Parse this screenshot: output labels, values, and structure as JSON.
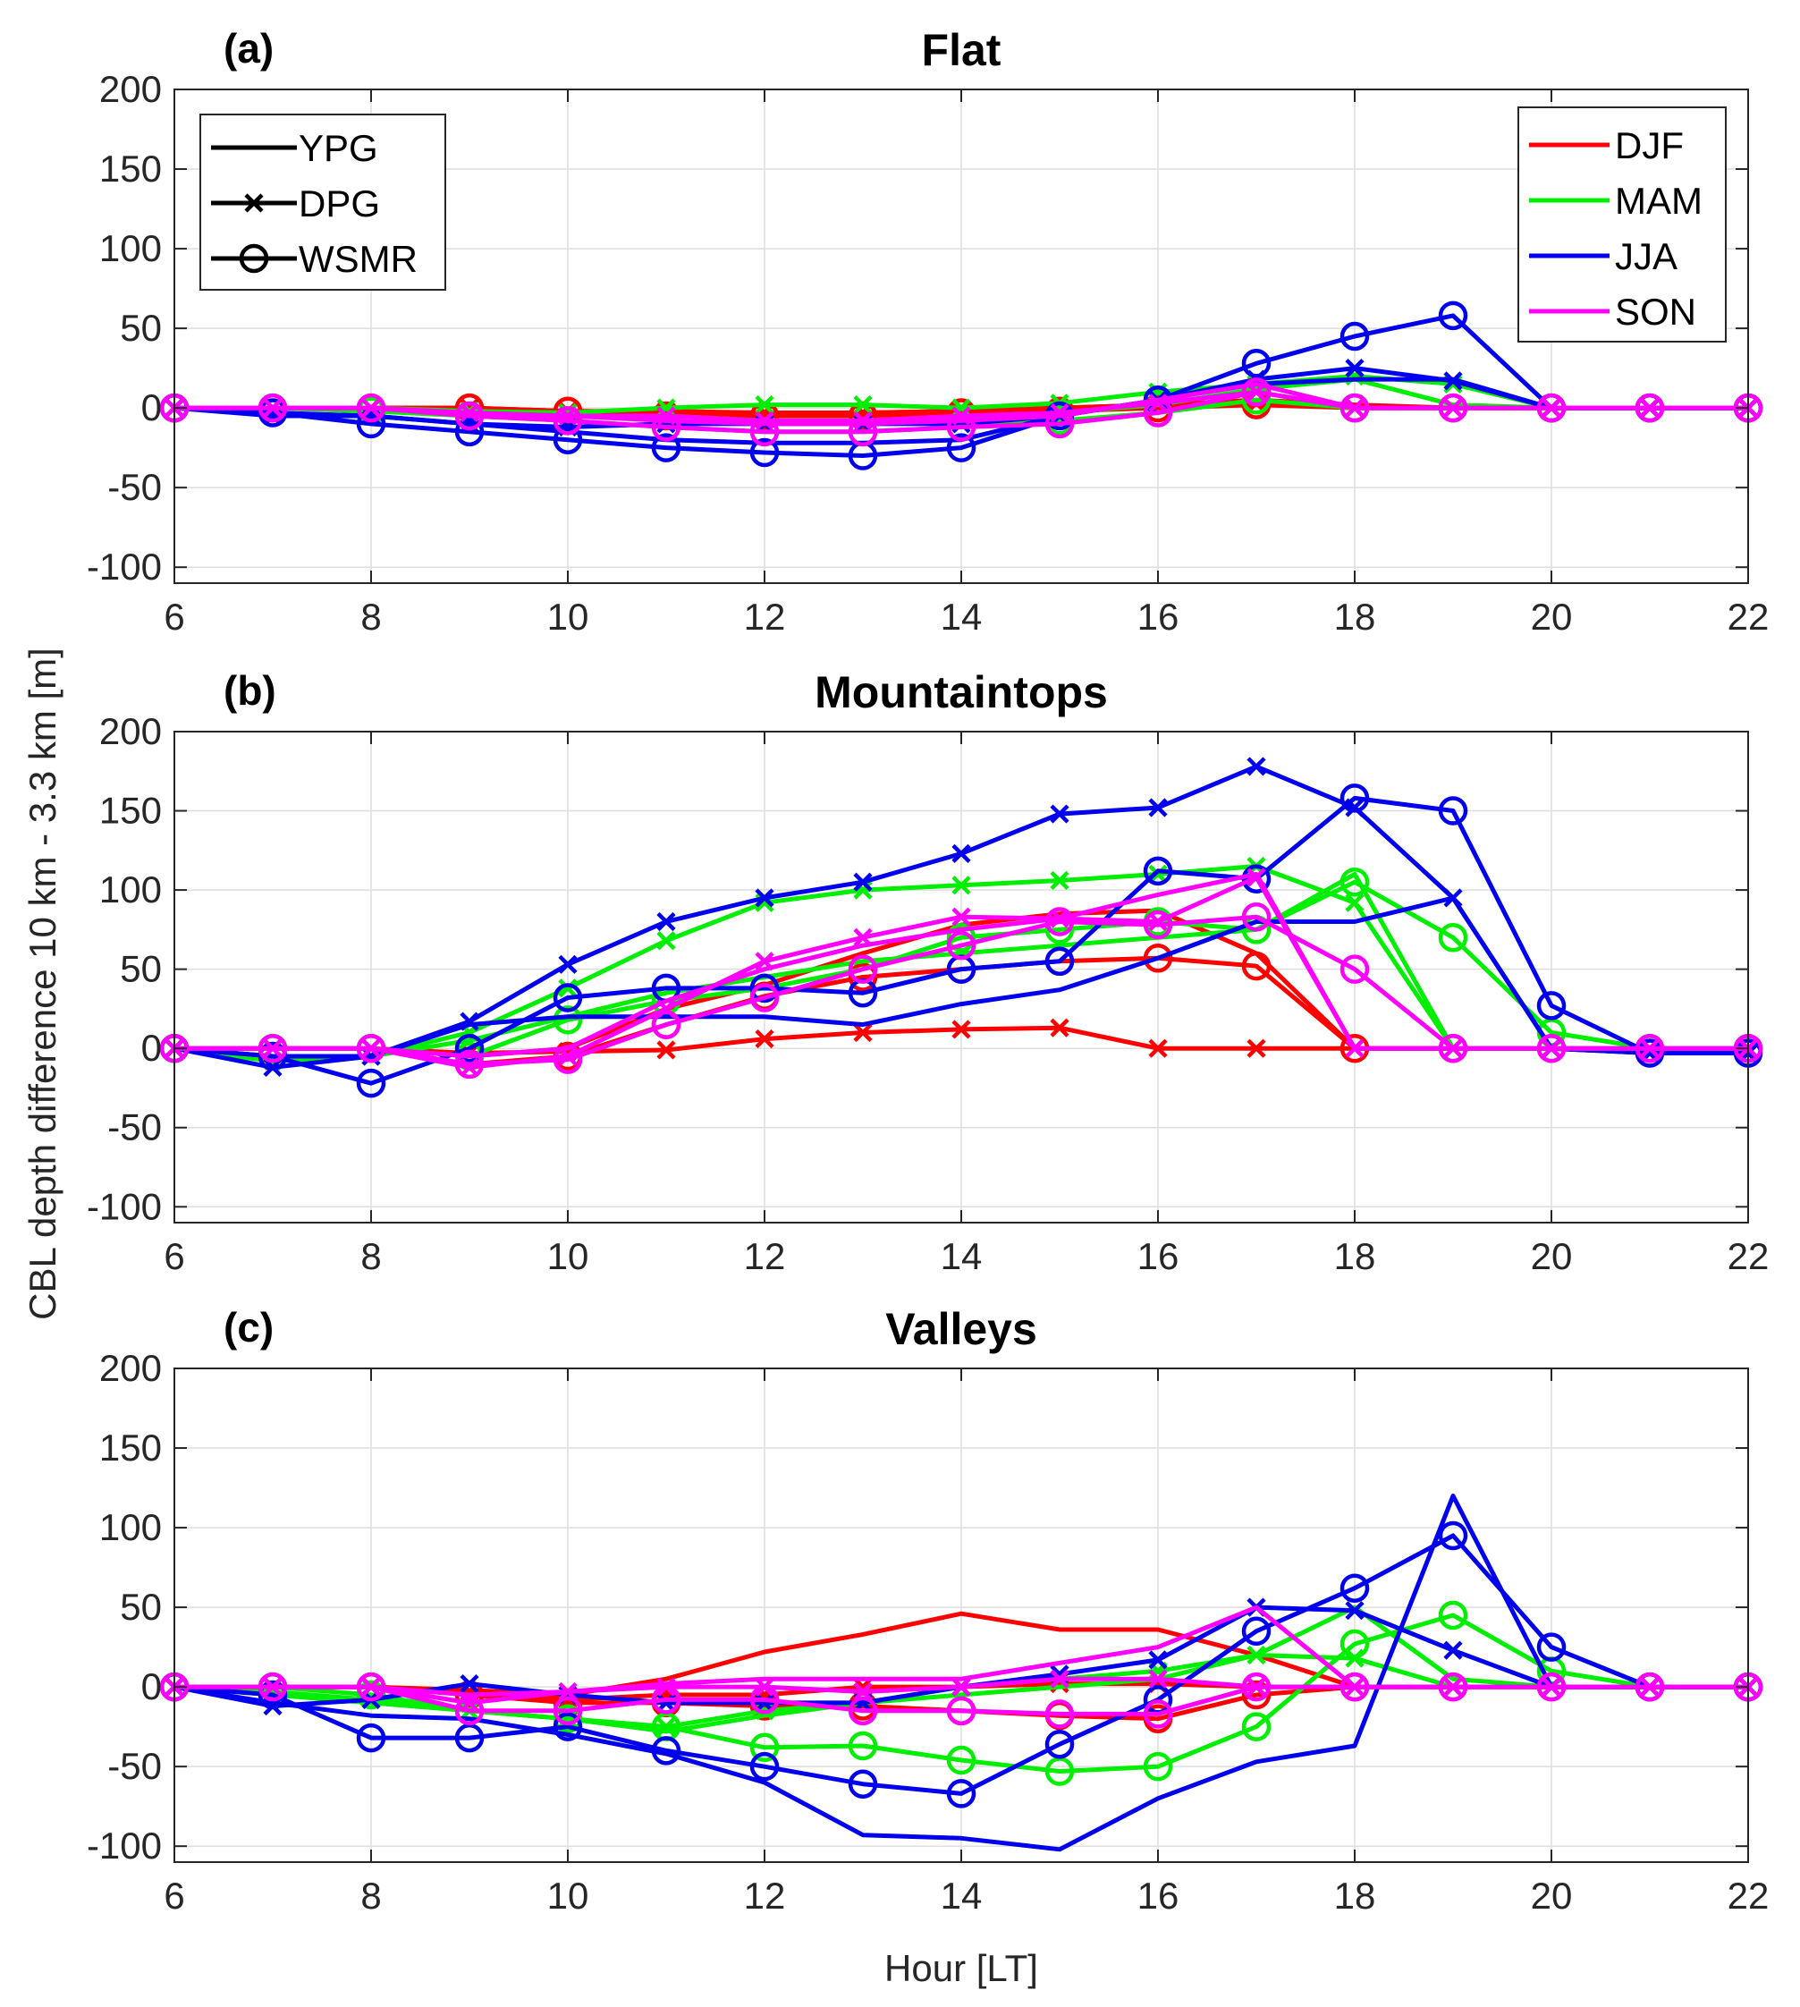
{
  "figure": {
    "ylabel": "CBL depth difference 10 km - 3.3 km [m]",
    "xlabel": "Hour [LT]"
  },
  "colors": {
    "DJF": "#ff0000",
    "MAM": "#00ee00",
    "JJA": "#0000ee",
    "SON": "#ff00ff",
    "axis": "#262626",
    "grid": "#dedede"
  },
  "legend_sites": [
    {
      "label": "YPG",
      "marker": "none"
    },
    {
      "label": "DPG",
      "marker": "x"
    },
    {
      "label": "WSMR",
      "marker": "o"
    }
  ],
  "legend_seasons": [
    {
      "label": "DJF",
      "color": "#ff0000"
    },
    {
      "label": "MAM",
      "color": "#00ee00"
    },
    {
      "label": "JJA",
      "color": "#0000ee"
    },
    {
      "label": "SON",
      "color": "#ff00ff"
    }
  ],
  "chart_data": [
    {
      "type": "line",
      "panel_label": "(a)",
      "title": "Flat",
      "xlim": [
        6,
        22
      ],
      "ylim": [
        -110,
        200
      ],
      "xticks": [
        6,
        8,
        10,
        12,
        14,
        16,
        18,
        20,
        22
      ],
      "yticks": [
        -100,
        -50,
        0,
        50,
        100,
        150,
        200
      ],
      "x": [
        6,
        7,
        8,
        9,
        10,
        11,
        12,
        13,
        14,
        15,
        16,
        17,
        18,
        19,
        20,
        21,
        22
      ],
      "series": [
        {
          "name": "DJF YPG",
          "season": "DJF",
          "site": "YPG",
          "values": [
            0,
            0,
            0,
            0,
            -2,
            -3,
            -3,
            -3,
            -2,
            0,
            2,
            5,
            2,
            0,
            0,
            0,
            0
          ]
        },
        {
          "name": "DJF DPG",
          "season": "DJF",
          "site": "DPG",
          "values": [
            0,
            0,
            0,
            0,
            -2,
            -2,
            -3,
            -3,
            -2,
            0,
            2,
            3,
            0,
            0,
            0,
            0,
            0
          ]
        },
        {
          "name": "DJF WSMR",
          "season": "DJF",
          "site": "WSMR",
          "values": [
            0,
            0,
            0,
            0,
            -2,
            -5,
            -5,
            -5,
            -3,
            -2,
            0,
            2,
            0,
            0,
            0,
            0,
            0
          ]
        },
        {
          "name": "MAM YPG",
          "season": "MAM",
          "site": "YPG",
          "values": [
            0,
            0,
            -2,
            -3,
            -5,
            -5,
            -8,
            -8,
            -6,
            -3,
            2,
            12,
            18,
            2,
            0,
            0,
            0
          ]
        },
        {
          "name": "MAM DPG",
          "season": "MAM",
          "site": "DPG",
          "values": [
            0,
            0,
            0,
            -2,
            -3,
            0,
            2,
            2,
            0,
            3,
            10,
            15,
            20,
            15,
            0,
            0,
            0
          ]
        },
        {
          "name": "MAM WSMR",
          "season": "MAM",
          "site": "WSMR",
          "values": [
            0,
            0,
            -2,
            -5,
            -8,
            -12,
            -15,
            -15,
            -12,
            -8,
            -3,
            5,
            0,
            0,
            0,
            0,
            0
          ]
        },
        {
          "name": "JJA YPG",
          "season": "JJA",
          "site": "YPG",
          "values": [
            0,
            -3,
            -5,
            -10,
            -15,
            -20,
            -22,
            -22,
            -20,
            -5,
            5,
            15,
            18,
            18,
            0,
            0,
            0
          ]
        },
        {
          "name": "JJA DPG",
          "season": "JJA",
          "site": "DPG",
          "values": [
            0,
            -5,
            -5,
            -10,
            -12,
            -10,
            -10,
            -10,
            -10,
            -5,
            5,
            18,
            25,
            17,
            0,
            0,
            0
          ]
        },
        {
          "name": "JJA WSMR",
          "season": "JJA",
          "site": "WSMR",
          "values": [
            0,
            -3,
            -10,
            -15,
            -20,
            -25,
            -28,
            -30,
            -25,
            -5,
            5,
            28,
            45,
            58,
            0,
            0,
            0
          ]
        },
        {
          "name": "SON YPG",
          "season": "SON",
          "site": "YPG",
          "values": [
            0,
            0,
            0,
            -3,
            -5,
            -8,
            -10,
            -10,
            -8,
            -5,
            5,
            15,
            0,
            0,
            0,
            0,
            0
          ]
        },
        {
          "name": "SON DPG",
          "season": "SON",
          "site": "DPG",
          "values": [
            0,
            0,
            0,
            -3,
            -5,
            -5,
            -8,
            -8,
            -5,
            -3,
            3,
            10,
            0,
            0,
            0,
            0,
            0
          ]
        },
        {
          "name": "SON WSMR",
          "season": "SON",
          "site": "WSMR",
          "values": [
            0,
            0,
            0,
            -5,
            -8,
            -12,
            -15,
            -15,
            -12,
            -10,
            -3,
            10,
            0,
            0,
            0,
            0,
            0
          ]
        }
      ]
    },
    {
      "type": "line",
      "panel_label": "(b)",
      "title": "Mountaintops",
      "xlim": [
        6,
        22
      ],
      "ylim": [
        -110,
        200
      ],
      "xticks": [
        6,
        8,
        10,
        12,
        14,
        16,
        18,
        20,
        22
      ],
      "yticks": [
        -100,
        -50,
        0,
        50,
        100,
        150,
        200
      ],
      "x": [
        6,
        7,
        8,
        9,
        10,
        11,
        12,
        13,
        14,
        15,
        16,
        17,
        18,
        19,
        20,
        21,
        22
      ],
      "series": [
        {
          "name": "DJF YPG",
          "season": "DJF",
          "site": "YPG",
          "values": [
            0,
            0,
            0,
            -5,
            0,
            25,
            40,
            60,
            78,
            85,
            87,
            60,
            0,
            0,
            0,
            0,
            0
          ]
        },
        {
          "name": "DJF DPG",
          "season": "DJF",
          "site": "DPG",
          "values": [
            0,
            0,
            0,
            -3,
            -2,
            -1,
            6,
            10,
            12,
            13,
            0,
            0,
            0,
            0,
            0,
            0,
            0
          ]
        },
        {
          "name": "DJF WSMR",
          "season": "DJF",
          "site": "WSMR",
          "values": [
            0,
            0,
            0,
            -10,
            -5,
            15,
            33,
            45,
            50,
            55,
            57,
            52,
            0,
            0,
            0,
            0,
            0
          ]
        },
        {
          "name": "MAM YPG",
          "season": "MAM",
          "site": "YPG",
          "values": [
            0,
            -5,
            -5,
            5,
            20,
            35,
            45,
            55,
            60,
            65,
            70,
            75,
            110,
            0,
            0,
            0,
            0
          ]
        },
        {
          "name": "MAM DPG",
          "season": "MAM",
          "site": "DPG",
          "values": [
            0,
            -8,
            -5,
            10,
            38,
            68,
            92,
            100,
            103,
            106,
            110,
            115,
            92,
            0,
            0,
            0,
            0
          ]
        },
        {
          "name": "MAM WSMR",
          "season": "MAM",
          "site": "WSMR",
          "values": [
            0,
            0,
            0,
            -5,
            18,
            30,
            38,
            50,
            70,
            75,
            80,
            75,
            105,
            70,
            10,
            0,
            0
          ]
        },
        {
          "name": "JJA YPG",
          "season": "JJA",
          "site": "YPG",
          "values": [
            0,
            -5,
            -5,
            15,
            20,
            20,
            20,
            15,
            28,
            37,
            57,
            80,
            80,
            95,
            0,
            -3,
            -3
          ]
        },
        {
          "name": "JJA DPG",
          "season": "JJA",
          "site": "DPG",
          "values": [
            0,
            -12,
            -5,
            17,
            53,
            80,
            95,
            105,
            123,
            148,
            152,
            178,
            152,
            95,
            0,
            -3,
            -3
          ]
        },
        {
          "name": "JJA WSMR",
          "season": "JJA",
          "site": "WSMR",
          "values": [
            0,
            -5,
            -22,
            0,
            32,
            38,
            38,
            35,
            50,
            55,
            112,
            107,
            158,
            150,
            27,
            -3,
            -3
          ]
        },
        {
          "name": "SON YPG",
          "season": "SON",
          "site": "YPG",
          "values": [
            0,
            0,
            0,
            -5,
            0,
            30,
            50,
            65,
            75,
            82,
            97,
            110,
            0,
            0,
            0,
            0,
            0
          ]
        },
        {
          "name": "SON DPG",
          "season": "SON",
          "site": "DPG",
          "values": [
            0,
            0,
            0,
            -12,
            -5,
            25,
            55,
            70,
            83,
            82,
            80,
            108,
            0,
            0,
            0,
            0,
            0
          ]
        },
        {
          "name": "SON WSMR",
          "season": "SON",
          "site": "WSMR",
          "values": [
            0,
            0,
            0,
            -10,
            -7,
            15,
            32,
            50,
            65,
            80,
            78,
            83,
            50,
            0,
            0,
            0,
            0
          ]
        }
      ]
    },
    {
      "type": "line",
      "panel_label": "(c)",
      "title": "Valleys",
      "xlim": [
        6,
        22
      ],
      "ylim": [
        -110,
        200
      ],
      "xticks": [
        6,
        8,
        10,
        12,
        14,
        16,
        18,
        20,
        22
      ],
      "yticks": [
        -100,
        -50,
        0,
        50,
        100,
        150,
        200
      ],
      "x": [
        6,
        7,
        8,
        9,
        10,
        11,
        12,
        13,
        14,
        15,
        16,
        17,
        18,
        19,
        20,
        21,
        22
      ],
      "series": [
        {
          "name": "DJF YPG",
          "season": "DJF",
          "site": "YPG",
          "values": [
            0,
            0,
            0,
            -2,
            -5,
            5,
            22,
            33,
            46,
            36,
            36,
            20,
            0,
            0,
            0,
            0,
            0
          ]
        },
        {
          "name": "DJF DPG",
          "season": "DJF",
          "site": "DPG",
          "values": [
            0,
            0,
            0,
            -3,
            -8,
            -5,
            -5,
            0,
            0,
            2,
            2,
            0,
            0,
            0,
            0,
            0,
            0
          ]
        },
        {
          "name": "DJF WSMR",
          "season": "DJF",
          "site": "WSMR",
          "values": [
            0,
            0,
            0,
            -5,
            -10,
            -10,
            -12,
            -12,
            -15,
            -18,
            -20,
            -5,
            0,
            0,
            0,
            0,
            0
          ]
        },
        {
          "name": "MAM YPG",
          "season": "MAM",
          "site": "YPG",
          "values": [
            0,
            -5,
            -10,
            -15,
            -20,
            -28,
            -18,
            -10,
            -5,
            0,
            5,
            20,
            50,
            5,
            0,
            0,
            0
          ]
        },
        {
          "name": "MAM DPG",
          "season": "MAM",
          "site": "DPG",
          "values": [
            0,
            -3,
            -8,
            -15,
            -20,
            -25,
            -15,
            -10,
            0,
            5,
            10,
            20,
            18,
            0,
            0,
            0,
            0
          ]
        },
        {
          "name": "MAM WSMR",
          "season": "MAM",
          "site": "WSMR",
          "values": [
            0,
            0,
            -5,
            -15,
            -20,
            -25,
            -38,
            -37,
            -46,
            -53,
            -50,
            -25,
            27,
            45,
            10,
            0,
            0
          ]
        },
        {
          "name": "JJA YPG",
          "season": "JJA",
          "site": "YPG",
          "values": [
            0,
            -10,
            -18,
            -20,
            -30,
            -42,
            -60,
            -93,
            -95,
            -102,
            -70,
            -47,
            -37,
            120,
            0,
            0,
            0
          ]
        },
        {
          "name": "JJA DPG",
          "season": "JJA",
          "site": "DPG",
          "values": [
            0,
            -12,
            -8,
            2,
            -5,
            -10,
            -10,
            -10,
            0,
            8,
            17,
            50,
            48,
            23,
            0,
            0,
            0
          ]
        },
        {
          "name": "JJA WSMR",
          "season": "JJA",
          "site": "WSMR",
          "values": [
            0,
            -5,
            -32,
            -32,
            -25,
            -40,
            -50,
            -61,
            -67,
            -36,
            -8,
            35,
            62,
            95,
            25,
            0,
            0
          ]
        },
        {
          "name": "SON YPG",
          "season": "SON",
          "site": "YPG",
          "values": [
            0,
            0,
            0,
            -5,
            -3,
            2,
            5,
            5,
            5,
            15,
            25,
            50,
            0,
            0,
            0,
            0,
            0
          ]
        },
        {
          "name": "SON DPG",
          "season": "SON",
          "site": "DPG",
          "values": [
            0,
            0,
            0,
            -10,
            -3,
            0,
            0,
            -3,
            0,
            5,
            5,
            0,
            0,
            0,
            0,
            0,
            0
          ]
        },
        {
          "name": "SON WSMR",
          "season": "SON",
          "site": "WSMR",
          "values": [
            0,
            0,
            0,
            -15,
            -15,
            -8,
            -8,
            -15,
            -15,
            -17,
            -17,
            0,
            0,
            0,
            0,
            0,
            0
          ]
        }
      ]
    }
  ]
}
